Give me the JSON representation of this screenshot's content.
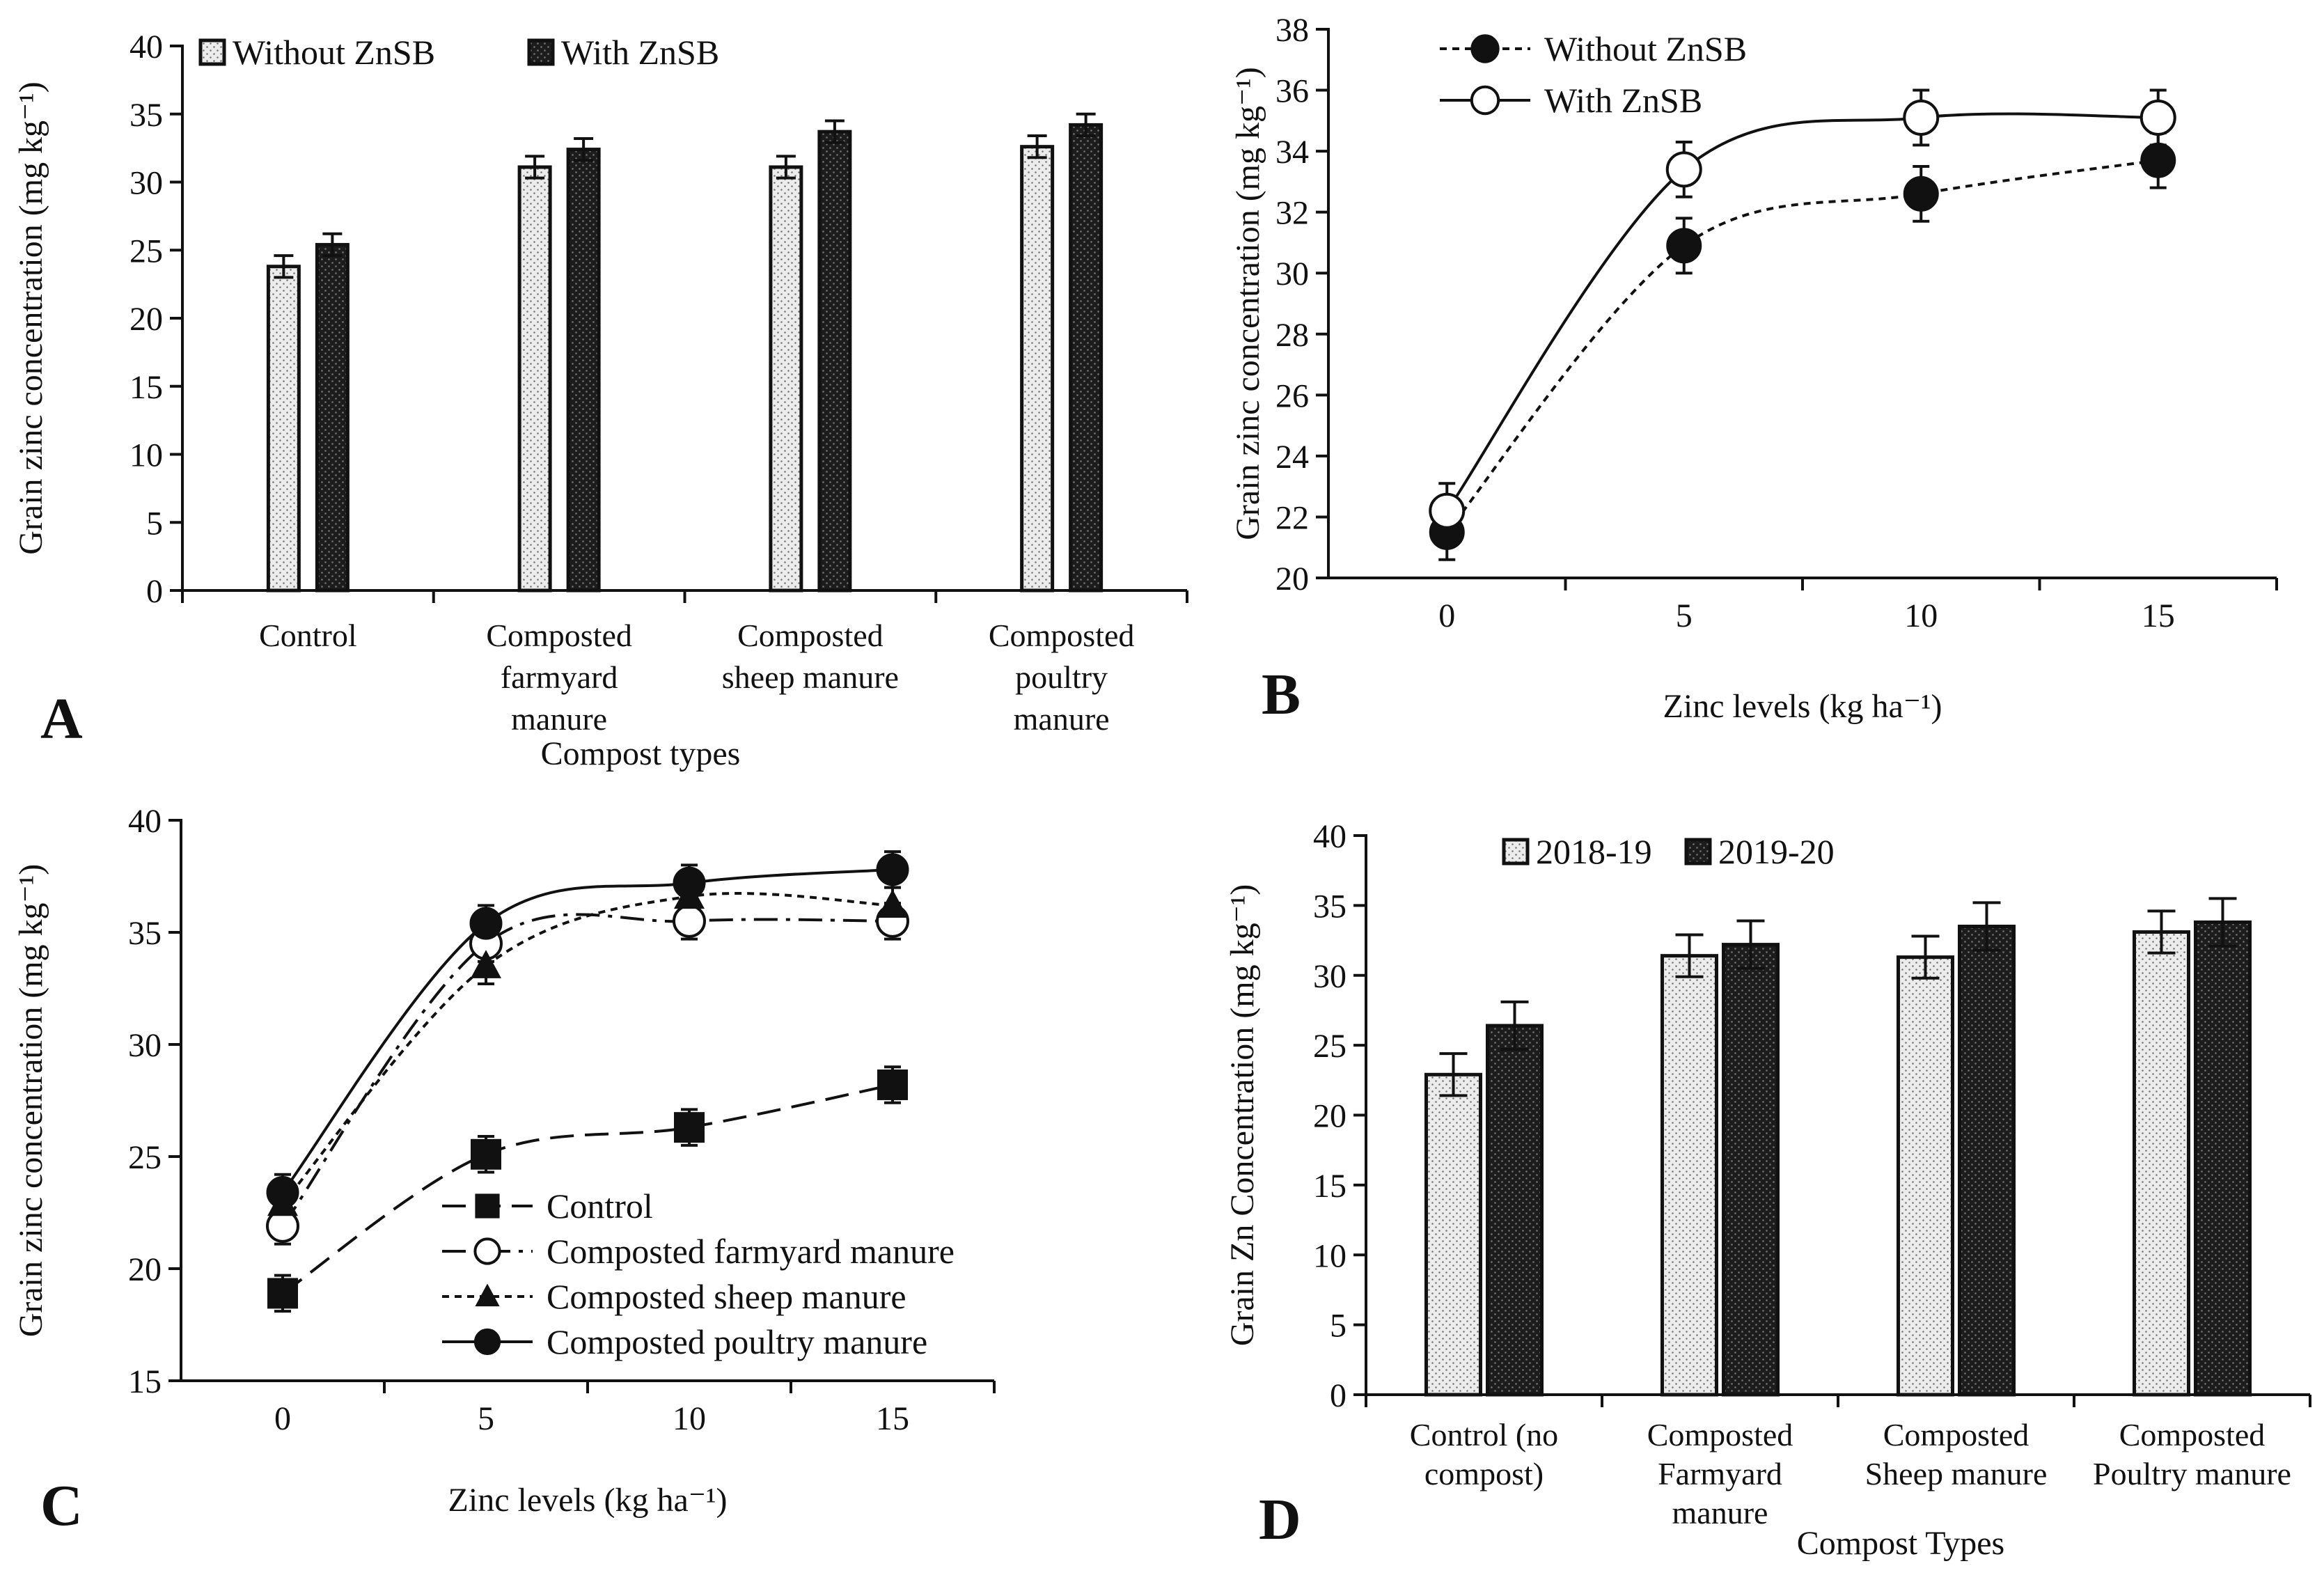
{
  "figure_title": "Grain zinc concentration figure",
  "colors": {
    "light_bar": "#ebebeb",
    "dark_bar": "#1f1f1f",
    "ink": "#111111",
    "open_marker": "#ffffff"
  },
  "chart_data": [
    {
      "panel": "A",
      "type": "bar",
      "title": "",
      "xlabel": "Compost types",
      "ylabel": "Grain zinc concentration (mg kg⁻¹)",
      "ylim": [
        0,
        40
      ],
      "yticks": [
        0,
        5,
        10,
        15,
        20,
        25,
        30,
        35,
        40
      ],
      "categories": [
        [
          "Control"
        ],
        [
          "Composted",
          "farmyard",
          "manure"
        ],
        [
          "Composted",
          "sheep manure"
        ],
        [
          "Composted",
          "poultry",
          "manure"
        ]
      ],
      "series": [
        {
          "name": "Without ZnSB",
          "style": "light",
          "values": [
            23.8,
            31.1,
            31.1,
            32.6
          ],
          "errors": [
            0.8,
            0.8,
            0.8,
            0.8
          ]
        },
        {
          "name": "With ZnSB",
          "style": "dark",
          "values": [
            25.4,
            32.4,
            33.7,
            34.2
          ],
          "errors": [
            0.8,
            0.8,
            0.8,
            0.8
          ]
        }
      ],
      "legend": "top"
    },
    {
      "panel": "B",
      "type": "line",
      "title": "",
      "xlabel": "Zinc levels (kg ha⁻¹)",
      "ylabel": "Grain zinc concentration (mg kg⁻¹)",
      "xlim": [
        -2.5,
        17.5
      ],
      "ylim": [
        20,
        38
      ],
      "xticks": [
        0,
        5,
        10,
        15
      ],
      "yticks": [
        20,
        22,
        24,
        26,
        28,
        30,
        32,
        34,
        36,
        38
      ],
      "x": [
        0,
        5,
        10,
        15
      ],
      "series": [
        {
          "name": "Without ZnSB",
          "marker": "filled-circle",
          "dash": "short",
          "values": [
            21.5,
            30.9,
            32.6,
            33.7
          ],
          "errors": [
            0.9,
            0.9,
            0.9,
            0.9
          ]
        },
        {
          "name": "With ZnSB",
          "marker": "open-circle",
          "dash": "solid",
          "values": [
            22.2,
            33.4,
            35.1,
            35.1
          ],
          "errors": [
            0.9,
            0.9,
            0.9,
            0.9
          ]
        }
      ],
      "legend": "top-left"
    },
    {
      "panel": "C",
      "type": "line",
      "title": "",
      "xlabel": "Zinc levels (kg ha⁻¹)",
      "ylabel": "Grain zinc concentration (mg kg⁻¹)",
      "xlim": [
        -2.5,
        17.5
      ],
      "ylim": [
        15,
        40
      ],
      "xticks": [
        0,
        5,
        10,
        15
      ],
      "yticks": [
        15,
        20,
        25,
        30,
        35,
        40
      ],
      "x": [
        0,
        5,
        10,
        15
      ],
      "series": [
        {
          "name": "Control",
          "marker": "filled-square",
          "dash": "long",
          "values": [
            18.9,
            25.1,
            26.3,
            28.2
          ],
          "errors": [
            0.8,
            0.8,
            0.8,
            0.8
          ]
        },
        {
          "name": "Composted farmyard manure",
          "marker": "open-circle",
          "dash": "dash-dot",
          "values": [
            21.9,
            34.5,
            35.5,
            35.5
          ],
          "errors": [
            0.8,
            0.8,
            0.8,
            0.8
          ]
        },
        {
          "name": "Composted sheep manure",
          "marker": "filled-triangle",
          "dash": "short",
          "values": [
            22.9,
            33.5,
            36.6,
            36.2
          ],
          "errors": [
            0.8,
            0.8,
            0.8,
            0.8
          ]
        },
        {
          "name": "Composted poultry manure",
          "marker": "filled-circle",
          "dash": "solid",
          "values": [
            23.4,
            35.4,
            37.2,
            37.8
          ],
          "errors": [
            0.8,
            0.8,
            0.8,
            0.8
          ]
        }
      ],
      "legend": "bottom-right"
    },
    {
      "panel": "D",
      "type": "bar",
      "title": "",
      "xlabel": "Compost Types",
      "ylabel": "Grain Zn Concentration (mg kg⁻¹)",
      "ylim": [
        0,
        40
      ],
      "yticks": [
        0,
        5,
        10,
        15,
        20,
        25,
        30,
        35,
        40
      ],
      "categories": [
        [
          "Control (no",
          "compost)"
        ],
        [
          "Composted",
          "Farmyard",
          "manure"
        ],
        [
          "Composted",
          "Sheep manure"
        ],
        [
          "Composted",
          "Poultry manure"
        ]
      ],
      "series": [
        {
          "name": "2018-19",
          "style": "light",
          "values": [
            22.9,
            31.4,
            31.3,
            33.1
          ],
          "errors": [
            1.5,
            1.5,
            1.5,
            1.5
          ]
        },
        {
          "name": "2019-20",
          "style": "dark",
          "values": [
            26.4,
            32.2,
            33.5,
            33.8
          ],
          "errors": [
            1.7,
            1.7,
            1.7,
            1.7
          ]
        }
      ],
      "legend": "top"
    }
  ]
}
